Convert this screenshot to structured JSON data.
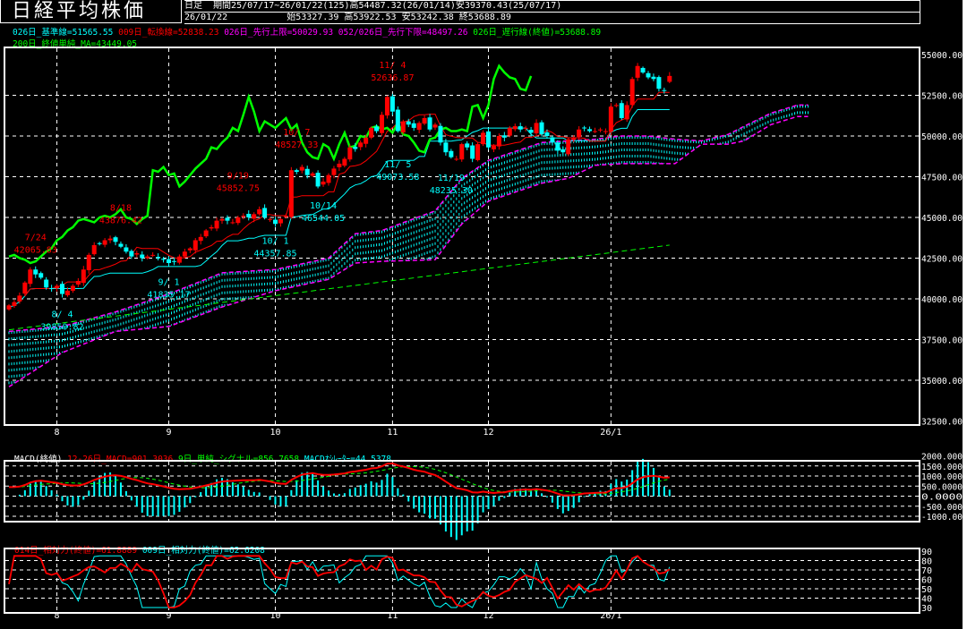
{
  "header": {
    "title": "日経平均株価",
    "timeframe": "日足",
    "period": "期間25/07/17~26/01/22(125)高54487.32(26/01/14)安39370.43(25/07/17)",
    "date": "26/01/22",
    "ohlc": "始53327.39 高53922.53 安53242.38 終53688.89"
  },
  "legend_main": [
    {
      "text": "026日_基準線=51565.55",
      "color": "#00ffff"
    },
    {
      "text": "009日_転換線=52838.23",
      "color": "#ff0000"
    },
    {
      "text": "026日_先行上限=50029.93",
      "color": "#ff00ff"
    },
    {
      "text": "052/026日_先行下限=48497.26",
      "color": "#ff00ff"
    },
    {
      "text": "026日_遅行線(終値)=53688.89",
      "color": "#00ff00"
    },
    {
      "text": "200日_終値単純_MA=43449.05",
      "color": "#00ff00"
    }
  ],
  "legend_macd": [
    {
      "text": "MACD(終値)",
      "color": "#ffffff"
    },
    {
      "text": "12-26日_MACD=901.3036",
      "color": "#ff0000"
    },
    {
      "text": "9日_単純_シグナル=856.7658",
      "color": "#00ff00"
    },
    {
      "text": "MACDｵｼﾚｰﾀｰ=44.5378",
      "color": "#00ffff"
    }
  ],
  "legend_rsi": [
    {
      "text": "014日_相対力(終値)=61.8889",
      "color": "#ff0000"
    },
    {
      "text": "009日_相対力(終値)=62.6208",
      "color": "#00ffff"
    }
  ],
  "colors": {
    "up": "#ff0000",
    "down": "#00ffff",
    "kijun": "#00ffff",
    "tenkan": "#ff0000",
    "chikou": "#00ff00",
    "ma200": "#00ff00",
    "cloud_edge": "#ff00ff",
    "cloud_fill": "#00ffff",
    "grid": "#ffffff",
    "background": "#000000"
  },
  "chart_data": [
    {
      "type": "candlestick",
      "panel": "price",
      "x_ticks": [
        {
          "label": "8",
          "day": 9
        },
        {
          "label": "9",
          "day": 30
        },
        {
          "label": "10",
          "day": 50
        },
        {
          "label": "11",
          "day": 72
        },
        {
          "label": "12",
          "day": 90
        },
        {
          "label": "26/1",
          "day": 113
        }
      ],
      "y_ticks": [
        "55000.00",
        "52500.00",
        "50000.00",
        "47500.00",
        "45000.00",
        "42500.00",
        "40000.00",
        "37500.00",
        "35000.00",
        "32500.00"
      ],
      "ylim": [
        32500,
        55000
      ],
      "grid": true,
      "close": [
        39600,
        39800,
        40200,
        41000,
        41800,
        41500,
        41300,
        40700,
        40600,
        40800,
        40300,
        40500,
        40800,
        41100,
        41800,
        42700,
        43300,
        43400,
        43600,
        43700,
        43500,
        43200,
        42900,
        42600,
        42800,
        42500,
        42600,
        42700,
        42500,
        42400,
        42200,
        42300,
        42600,
        42900,
        43100,
        43600,
        43800,
        44200,
        44400,
        44800,
        44900,
        44800,
        44700,
        45000,
        45100,
        45000,
        45200,
        45500,
        45000,
        44900,
        44600,
        44900,
        45100,
        47900,
        47800,
        48100,
        47600,
        47700,
        46900,
        47200,
        47600,
        48000,
        48300,
        48600,
        49300,
        49200,
        49600,
        49900,
        50500,
        50300,
        51300,
        52400,
        51500,
        50300,
        50900,
        50700,
        50500,
        50800,
        51100,
        50400,
        50700,
        49600,
        49000,
        48700,
        48600,
        49500,
        49300,
        48600,
        49500,
        50200,
        49300,
        49400,
        50000,
        49900,
        50500,
        50600,
        50400,
        50500,
        50200,
        50800,
        50100,
        50000,
        49600,
        49100,
        49000,
        49800,
        49900,
        50400,
        50500,
        50300,
        50300,
        50400,
        50300,
        51800,
        51900,
        51100,
        51900,
        53500,
        54300,
        53900,
        53600,
        53500,
        52900,
        52800,
        53688.89
      ],
      "last_ohlc": {
        "open": 53327.39,
        "high": 53922.53,
        "low": 53242.38,
        "close": 53688.89
      },
      "senkou_a": [
        [
          0,
          38000
        ],
        [
          10,
          38300
        ],
        [
          20,
          39200
        ],
        [
          30,
          40300
        ],
        [
          40,
          41600
        ],
        [
          50,
          41800
        ],
        [
          60,
          42500
        ],
        [
          65,
          44000
        ],
        [
          70,
          44200
        ],
        [
          80,
          45400
        ],
        [
          85,
          47400
        ],
        [
          90,
          48500
        ],
        [
          100,
          49600
        ],
        [
          105,
          49700
        ],
        [
          110,
          49800
        ],
        [
          115,
          50000
        ],
        [
          120,
          50000
        ],
        [
          125,
          49800
        ],
        [
          130,
          49700
        ],
        [
          135,
          50100
        ],
        [
          138,
          50600
        ],
        [
          143,
          51400
        ],
        [
          148,
          51900
        ],
        [
          150,
          51900
        ]
      ],
      "senkou_b": [
        [
          0,
          34600
        ],
        [
          10,
          36700
        ],
        [
          20,
          38000
        ],
        [
          30,
          38300
        ],
        [
          40,
          39500
        ],
        [
          50,
          40500
        ],
        [
          60,
          41200
        ],
        [
          65,
          42200
        ],
        [
          70,
          42300
        ],
        [
          80,
          42400
        ],
        [
          85,
          44600
        ],
        [
          90,
          46000
        ],
        [
          100,
          47100
        ],
        [
          105,
          47400
        ],
        [
          110,
          48200
        ],
        [
          115,
          48300
        ],
        [
          120,
          48300
        ],
        [
          125,
          48300
        ],
        [
          130,
          49500
        ],
        [
          135,
          49500
        ],
        [
          138,
          49700
        ],
        [
          143,
          50700
        ],
        [
          148,
          51200
        ],
        [
          150,
          51200
        ]
      ],
      "ma200": [
        [
          0,
          38100
        ],
        [
          124,
          43300
        ]
      ],
      "annotations": [
        {
          "date": "7/24",
          "value": "42065.83",
          "color": "#ff0000"
        },
        {
          "date": "8/18",
          "value": "43876.42",
          "color": "#ff0000"
        },
        {
          "date": "8/ 4",
          "value": "39850.82",
          "color": "#00ffff"
        },
        {
          "date": "9/ 1",
          "value": "41835.17",
          "color": "#00ffff"
        },
        {
          "date": "9/19",
          "value": "45852.75",
          "color": "#ff0000"
        },
        {
          "date": "10/ 1",
          "value": "44357.85",
          "color": "#00ffff"
        },
        {
          "date": "10/ 7",
          "value": "48527.33",
          "color": "#ff0000"
        },
        {
          "date": "10/14",
          "value": "46544.05",
          "color": "#00ffff"
        },
        {
          "date": "11/ 4",
          "value": "52636.87",
          "color": "#ff0000"
        },
        {
          "date": "11/ 5",
          "value": "49073.58",
          "color": "#00ffff"
        },
        {
          "date": "11/19",
          "value": "48235.30",
          "color": "#00ffff"
        }
      ]
    },
    {
      "type": "line",
      "panel": "macd",
      "y_ticks": [
        "2000.000",
        "1500.000",
        "1000.000",
        "500.0000",
        "0.0000",
        "-500.000",
        "-1000.00"
      ],
      "ylim": [
        -1000,
        2000
      ],
      "series": [
        {
          "name": "MACD"
        },
        {
          "name": "シグナル"
        },
        {
          "name": "MACDｵｼﾚｰﾀｰ"
        }
      ]
    },
    {
      "type": "line",
      "panel": "rsi",
      "y_ticks": [
        "90",
        "80",
        "70",
        "60",
        "50",
        "40",
        "30"
      ],
      "ylim": [
        30,
        90
      ],
      "series": [
        {
          "name": "014日_相対力"
        },
        {
          "name": "009日_相対力"
        }
      ]
    }
  ]
}
